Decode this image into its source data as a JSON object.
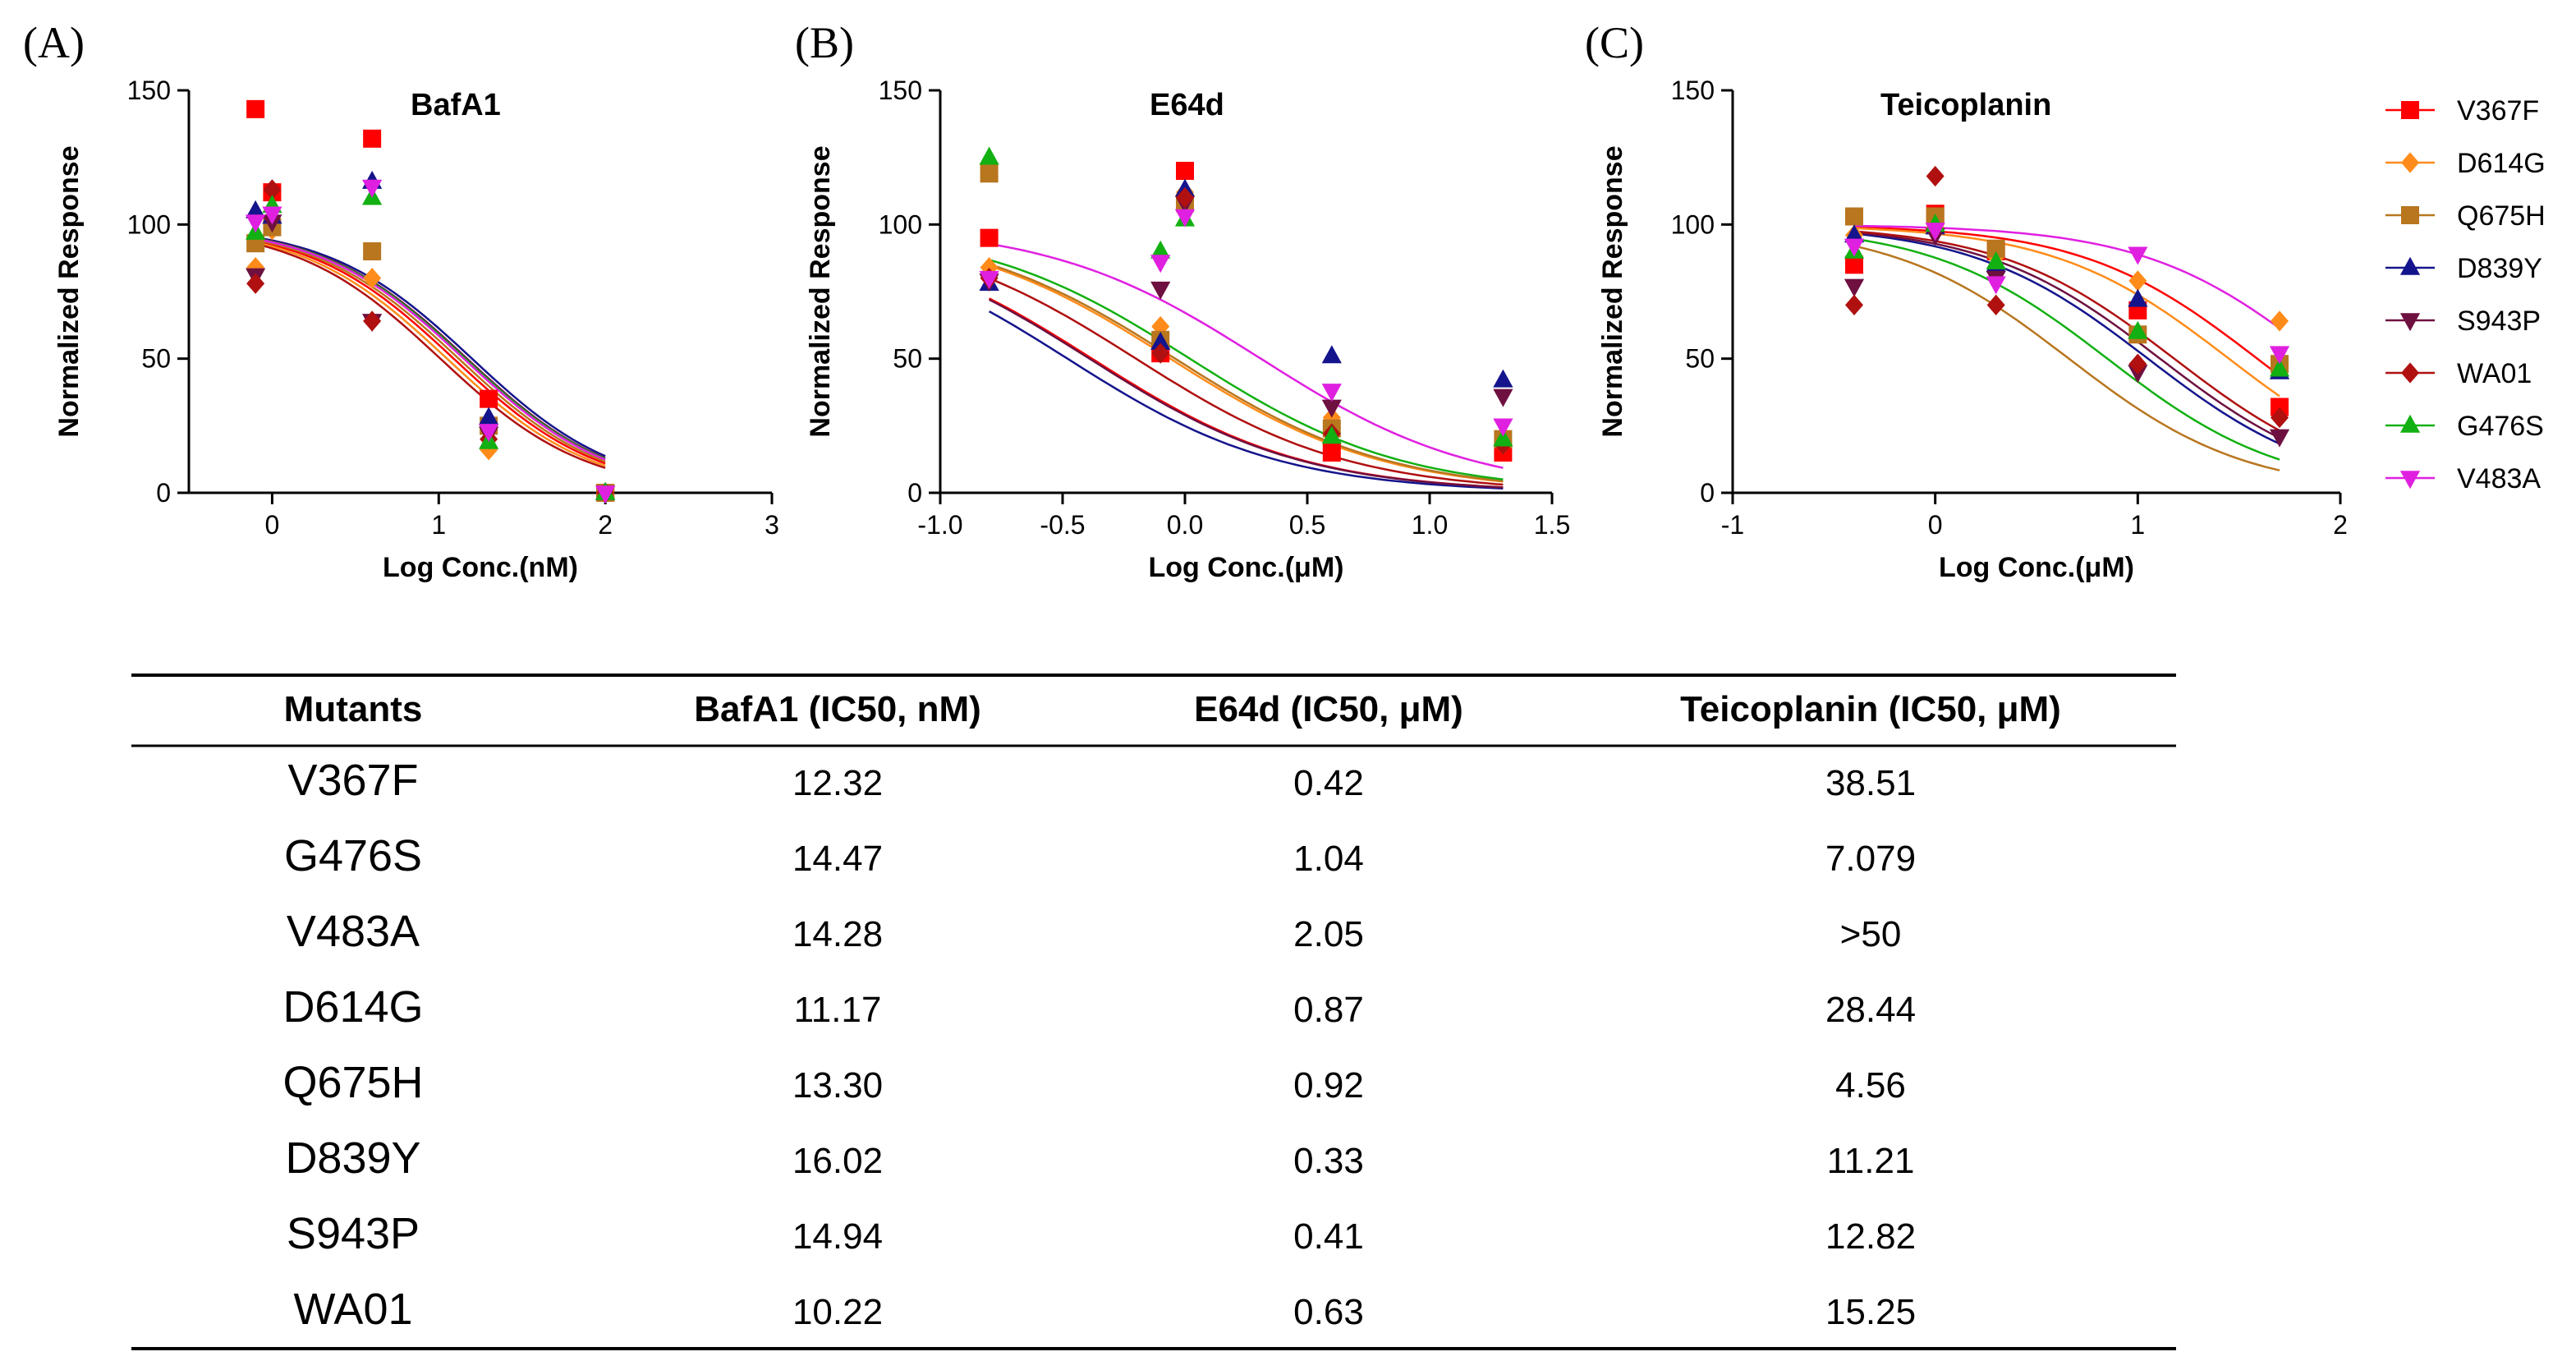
{
  "chart_data": [
    {
      "type": "scatter",
      "panel": "(A)",
      "title": "BafA1",
      "xlabel": "Log Conc.(nM)",
      "ylabel": "Normalized Response",
      "xlim": [
        -0.5,
        3
      ],
      "ylim": [
        0,
        150
      ],
      "xticks": [
        0,
        1,
        2,
        3
      ],
      "xtick_labels": [
        "0",
        "1",
        "2",
        "3"
      ],
      "yticks": [
        0,
        50,
        100,
        150
      ],
      "ytick_labels": [
        "0",
        "50",
        "100",
        "150"
      ],
      "x": [
        -0.1,
        0,
        0.6,
        1.3,
        2
      ],
      "series": [
        {
          "name": "V367F",
          "values": [
            143,
            112,
            132,
            35,
            0
          ],
          "logIC50": 1.09
        },
        {
          "name": "D614G",
          "values": [
            84,
            98,
            80,
            16,
            0
          ],
          "logIC50": 1.05
        },
        {
          "name": "Q675H",
          "values": [
            93,
            99,
            90,
            25,
            0
          ],
          "logIC50": 1.12
        },
        {
          "name": "D839Y",
          "values": [
            105,
            103,
            116,
            28,
            0
          ],
          "logIC50": 1.2
        },
        {
          "name": "S943P",
          "values": [
            81,
            101,
            64,
            22,
            0
          ],
          "logIC50": 1.17
        },
        {
          "name": "WA01",
          "values": [
            78,
            113,
            64,
            20,
            0
          ],
          "logIC50": 1.01
        },
        {
          "name": "G476S",
          "values": [
            97,
            107,
            110,
            19,
            0
          ],
          "logIC50": 1.16
        },
        {
          "name": "V483A",
          "values": [
            101,
            104,
            114,
            23,
            0
          ],
          "logIC50": 1.15
        }
      ]
    },
    {
      "type": "scatter",
      "panel": "(B)",
      "title": "E64d",
      "xlabel": "Log Conc.(μM)",
      "ylabel": "Normalized Response",
      "xlim": [
        -1.0,
        1.5
      ],
      "ylim": [
        0,
        150
      ],
      "xticks": [
        -1.0,
        -0.5,
        0.0,
        0.5,
        1.0,
        1.5
      ],
      "xtick_labels": [
        "-1.0",
        "-0.5",
        "0.0",
        "0.5",
        "1.0",
        "1.5"
      ],
      "yticks": [
        0,
        50,
        100,
        150
      ],
      "ytick_labels": [
        "0",
        "50",
        "100",
        "150"
      ],
      "x": [
        -0.8,
        -0.1,
        0,
        0.6,
        1.3
      ],
      "series": [
        {
          "name": "V367F",
          "values": [
            95,
            52,
            120,
            15,
            15
          ],
          "logIC50": -0.38
        },
        {
          "name": "D614G",
          "values": [
            84,
            62,
            112,
            28,
            18
          ],
          "logIC50": -0.06
        },
        {
          "name": "Q675H",
          "values": [
            119,
            57,
            108,
            24,
            20
          ],
          "logIC50": -0.04
        },
        {
          "name": "D839Y",
          "values": [
            78,
            56,
            113,
            51,
            42
          ],
          "logIC50": -0.48
        },
        {
          "name": "S943P",
          "values": [
            79,
            76,
            108,
            32,
            36
          ],
          "logIC50": -0.39
        },
        {
          "name": "WA01",
          "values": [
            80,
            52,
            110,
            22,
            18
          ],
          "logIC50": -0.2
        },
        {
          "name": "G476S",
          "values": [
            125,
            90,
            102,
            21,
            20
          ],
          "logIC50": 0.02
        },
        {
          "name": "V483A",
          "values": [
            80,
            86,
            103,
            38,
            25
          ],
          "logIC50": 0.31
        }
      ]
    },
    {
      "type": "scatter",
      "panel": "(C)",
      "title": "Teicoplanin",
      "xlabel": "Log Conc.(μM)",
      "ylabel": "Normalized Response",
      "xlim": [
        -1,
        2
      ],
      "ylim": [
        0,
        150
      ],
      "xticks": [
        -1,
        0,
        1,
        2
      ],
      "xtick_labels": [
        "-1",
        "0",
        "1",
        "2"
      ],
      "yticks": [
        0,
        50,
        100,
        150
      ],
      "ytick_labels": [
        "0",
        "50",
        "100",
        "150"
      ],
      "x": [
        -0.4,
        0,
        0.3,
        1,
        1.7
      ],
      "series": [
        {
          "name": "V367F",
          "values": [
            85,
            104,
            90,
            68,
            32
          ],
          "logIC50": 1.59
        },
        {
          "name": "D614G",
          "values": [
            96,
            99,
            88,
            79,
            64
          ],
          "logIC50": 1.45
        },
        {
          "name": "Q675H",
          "values": [
            103,
            103,
            91,
            59,
            48
          ],
          "logIC50": 0.66
        },
        {
          "name": "D839Y",
          "values": [
            96,
            99,
            85,
            72,
            45
          ],
          "logIC50": 1.05
        },
        {
          "name": "S943P",
          "values": [
            77,
            96,
            80,
            45,
            21
          ],
          "logIC50": 1.11
        },
        {
          "name": "WA01",
          "values": [
            70,
            118,
            70,
            48,
            28
          ],
          "logIC50": 1.18
        },
        {
          "name": "G476S",
          "values": [
            90,
            100,
            86,
            60,
            46
          ],
          "logIC50": 0.85
        },
        {
          "name": "V483A",
          "values": [
            92,
            98,
            78,
            89,
            52
          ],
          "logIC50": 1.9
        }
      ]
    }
  ],
  "panels": [
    {
      "letter": "(A)",
      "title": "BafA1"
    },
    {
      "letter": "(B)",
      "title": "E64d"
    },
    {
      "letter": "(C)",
      "title": "Teicoplanin"
    }
  ],
  "legend": [
    {
      "name": "V367F",
      "color": "#ff0000",
      "marker": "square"
    },
    {
      "name": "D614G",
      "color": "#ff8c1a",
      "marker": "diamond"
    },
    {
      "name": "Q675H",
      "color": "#b8761f",
      "marker": "square"
    },
    {
      "name": "D839Y",
      "color": "#14148c",
      "marker": "triangle-up"
    },
    {
      "name": "S943P",
      "color": "#6e1040",
      "marker": "triangle-down"
    },
    {
      "name": "WA01",
      "color": "#b01010",
      "marker": "diamond"
    },
    {
      "name": "G476S",
      "color": "#12b012",
      "marker": "triangle-up"
    },
    {
      "name": "V483A",
      "color": "#e020e0",
      "marker": "triangle-down"
    }
  ],
  "table": {
    "headers": [
      "Mutants",
      "BafA1 (IC50, nM)",
      "E64d (IC50, μM)",
      "Teicoplanin (IC50, μM)"
    ],
    "rows": [
      [
        "V367F",
        "12.32",
        "0.42",
        "38.51"
      ],
      [
        "G476S",
        "14.47",
        "1.04",
        "7.079"
      ],
      [
        "V483A",
        "14.28",
        "2.05",
        ">50"
      ],
      [
        "D614G",
        "11.17",
        "0.87",
        "28.44"
      ],
      [
        "Q675H",
        "13.30",
        "0.92",
        "4.56"
      ],
      [
        "D839Y",
        "16.02",
        "0.33",
        "11.21"
      ],
      [
        "S943P",
        "14.94",
        "0.41",
        "12.82"
      ],
      [
        "WA01",
        "10.22",
        "0.63",
        "15.25"
      ]
    ]
  }
}
